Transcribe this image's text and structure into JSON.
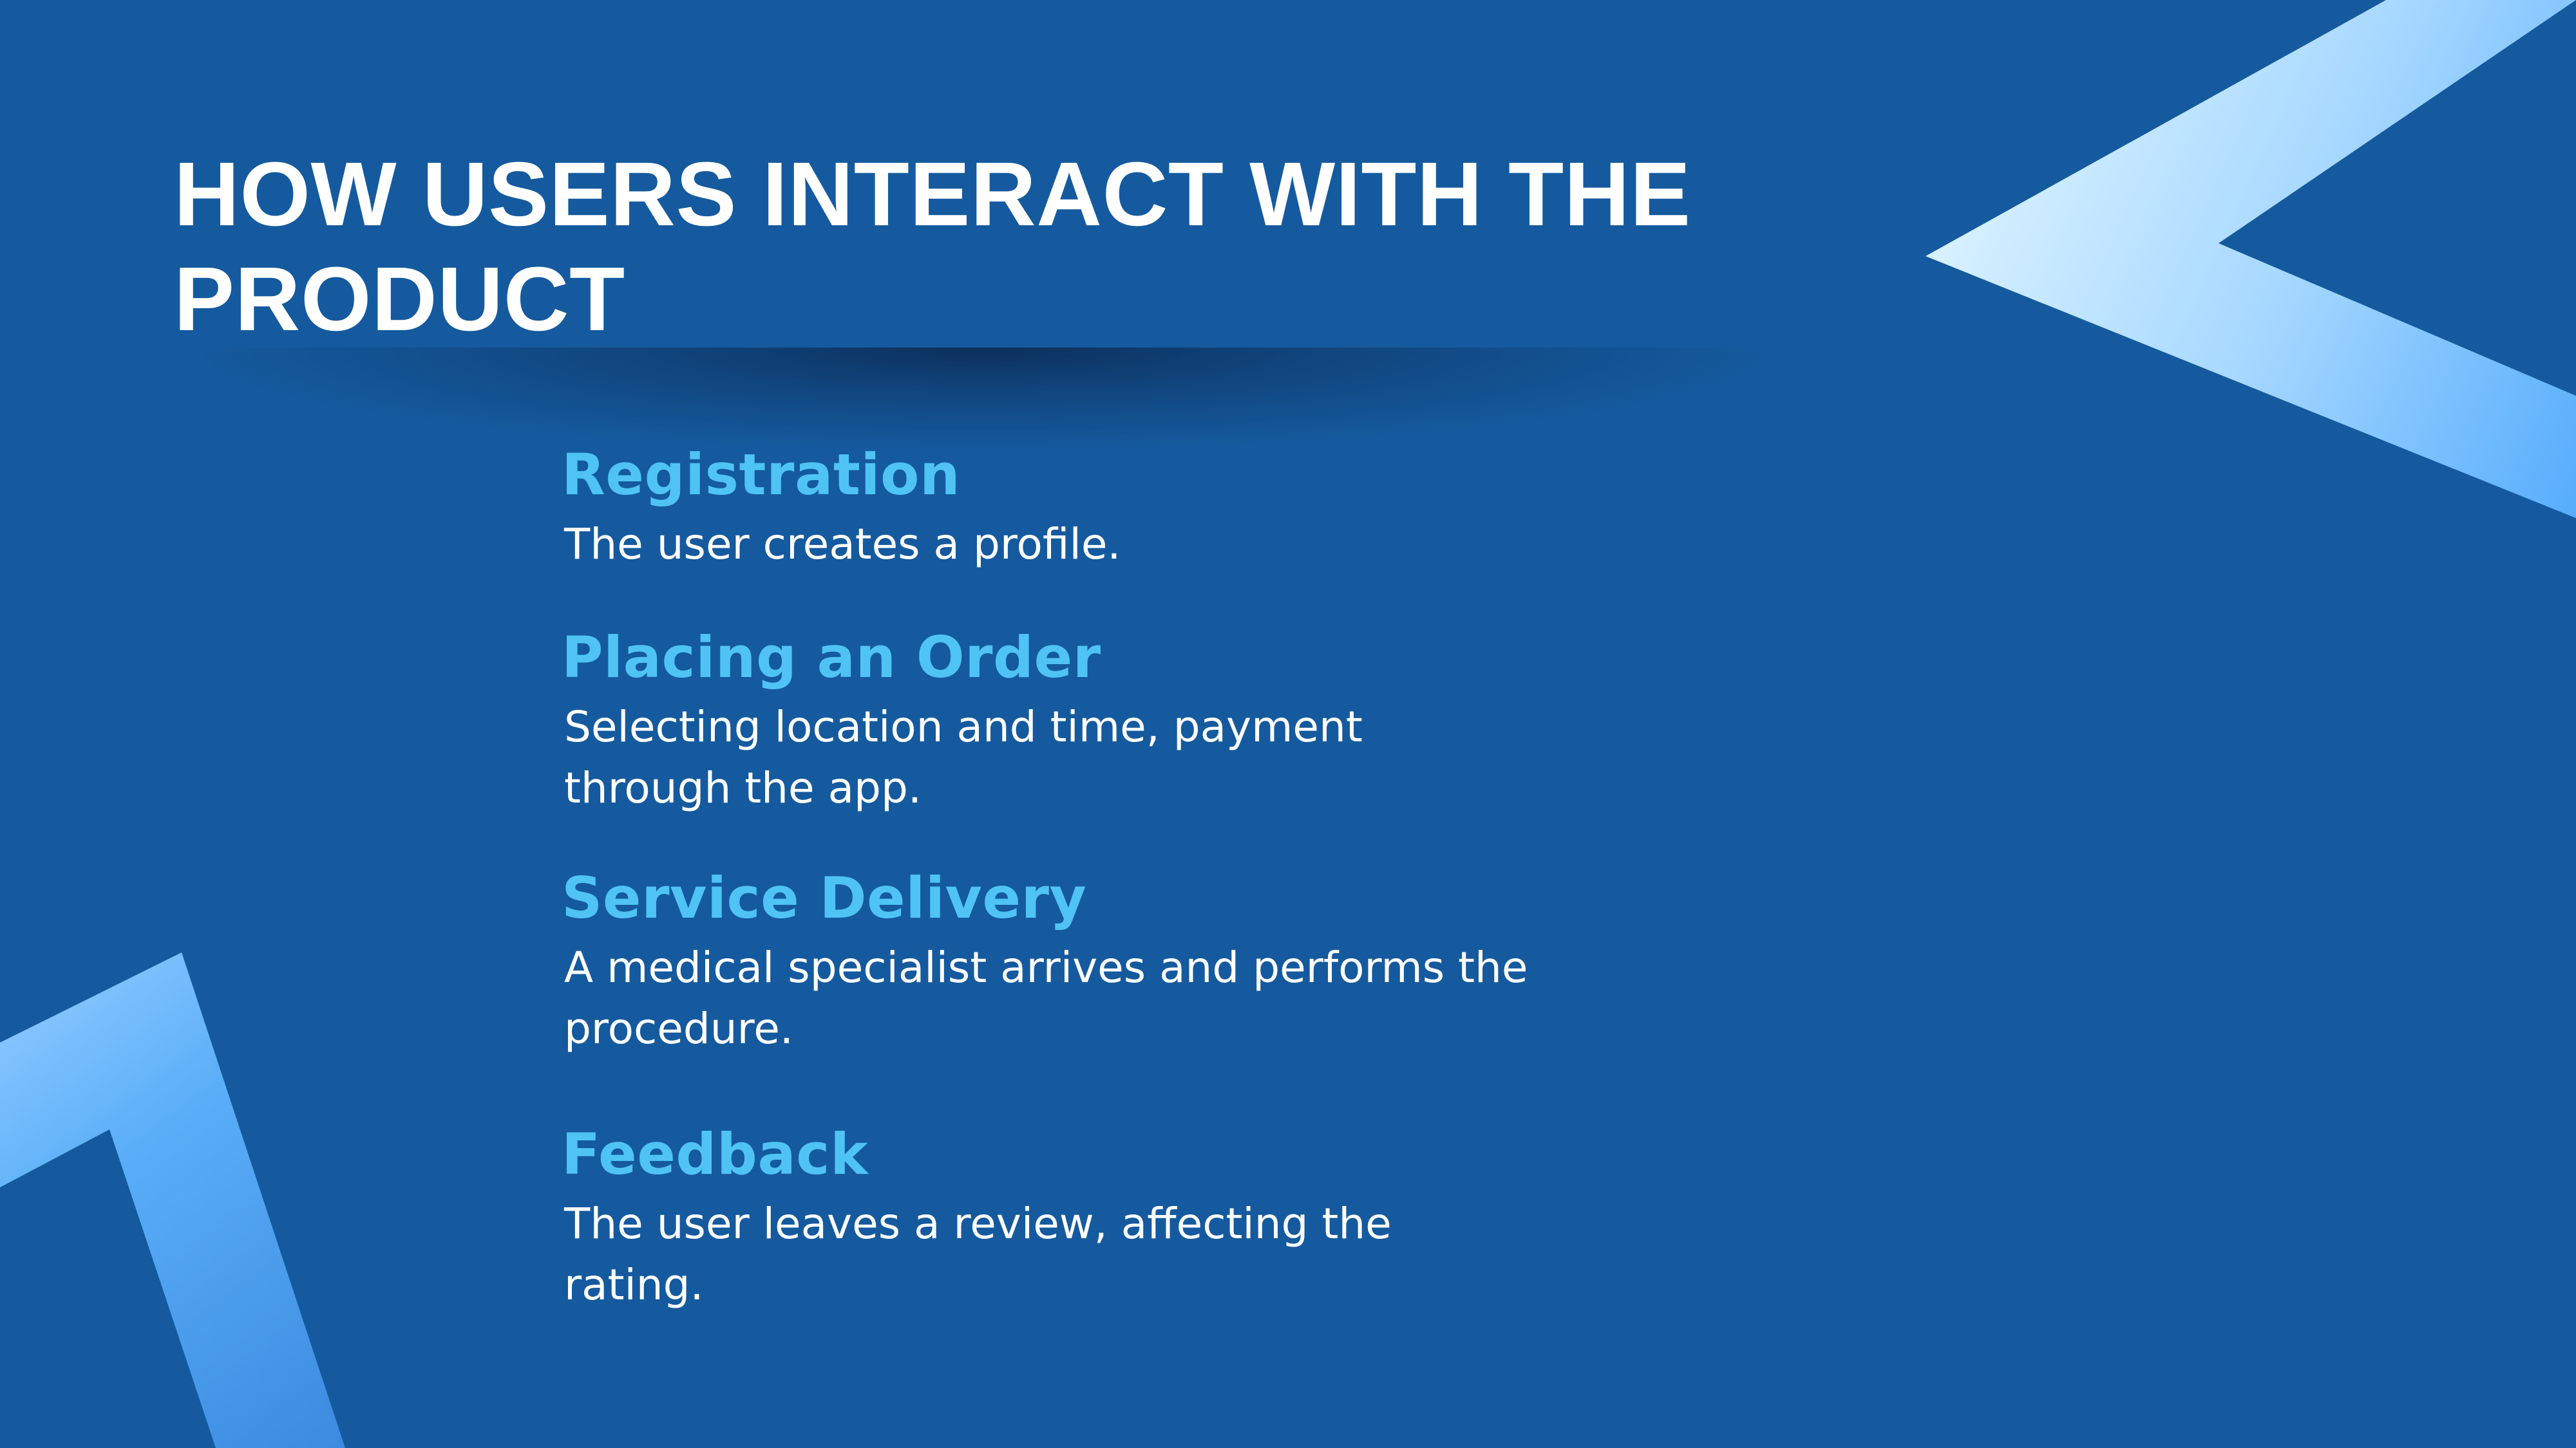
{
  "slide": {
    "title": "HOW USERS INTERACT WITH THE PRODUCT",
    "background_color": "#155a9e",
    "heading_color": "#4fc3f4",
    "text_color": "#ffffff"
  },
  "steps": [
    {
      "title": "Registration",
      "description": "The user creates a profile."
    },
    {
      "title": "Placing an Order",
      "description": "Selecting location and time, payment through the app."
    },
    {
      "title": "Service Delivery",
      "description": "A medical specialist arrives and performs the procedure."
    },
    {
      "title": "Feedback",
      "description": "The user leaves a review, affecting the rating."
    }
  ]
}
